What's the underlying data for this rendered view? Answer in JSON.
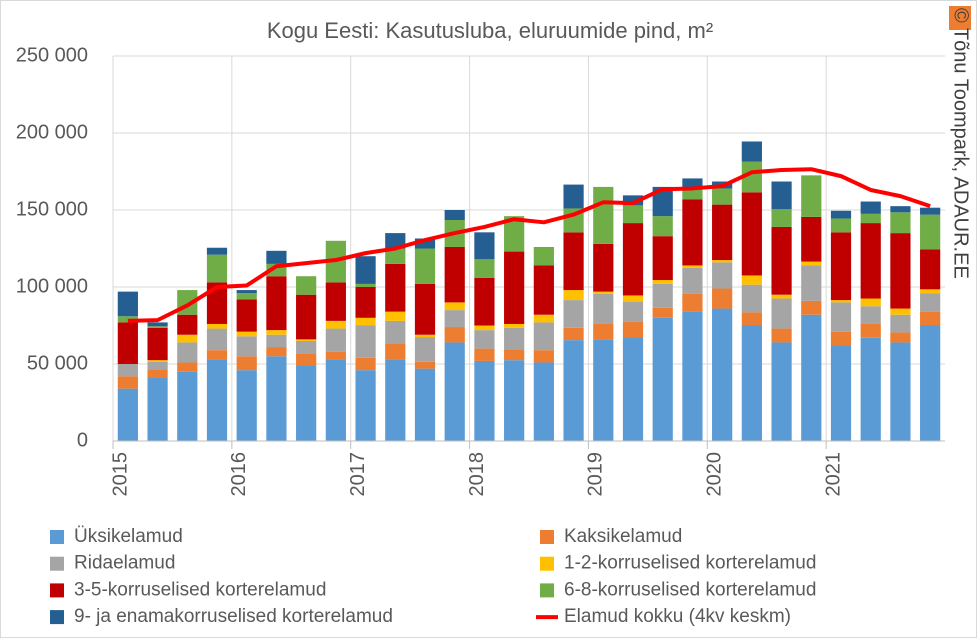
{
  "chart_data": {
    "type": "stacked_bar",
    "title": "Kogu Eesti: Kasutusluba, eluruumide pind, m²",
    "source": "© Tõnu Toompark, ADAUR.EE",
    "categories": [
      "2015",
      null,
      null,
      null,
      "2016",
      null,
      null,
      null,
      "2017",
      null,
      null,
      null,
      "2018",
      null,
      null,
      null,
      "2019",
      null,
      null,
      null,
      "2020",
      null,
      null,
      null,
      "2021",
      null,
      null,
      null
    ],
    "series": [
      {
        "name": "Üksikelamud",
        "color": "#5b9bd5",
        "values": [
          34000,
          41500,
          45000,
          53000,
          46000,
          55000,
          49000,
          53000,
          46000,
          53000,
          47000,
          64000,
          52000,
          52500,
          51000,
          65500,
          66000,
          67500,
          80000,
          84000,
          86000,
          75000,
          64000,
          82000,
          62000,
          67000,
          64000,
          75000
        ]
      },
      {
        "name": "Kaksikelamud",
        "color": "#ed7d31",
        "values": [
          8000,
          5000,
          6000,
          6000,
          9000,
          6000,
          8000,
          5000,
          8000,
          10000,
          4500,
          10000,
          8000,
          7000,
          8000,
          8000,
          10000,
          10000,
          6500,
          11500,
          13000,
          8500,
          9000,
          9000,
          9000,
          9000,
          6500,
          9000
        ]
      },
      {
        "name": "Ridaelamud",
        "color": "#a5a5a5",
        "values": [
          8000,
          5000,
          13000,
          14000,
          13000,
          8000,
          8000,
          15000,
          21000,
          15000,
          16000,
          11000,
          12000,
          14000,
          18000,
          18000,
          19500,
          13000,
          15500,
          17000,
          17000,
          18000,
          19500,
          23000,
          19000,
          11500,
          11500,
          12000
        ]
      },
      {
        "name": "1-2-korruselised korterelamud",
        "color": "#ffc000",
        "values": [
          0,
          1000,
          5000,
          3000,
          3000,
          3000,
          1000,
          5000,
          5000,
          6000,
          1500,
          5000,
          3000,
          2500,
          5000,
          6500,
          1500,
          4000,
          2500,
          1500,
          1500,
          6000,
          2500,
          2500,
          1500,
          5000,
          4000,
          2500
        ]
      },
      {
        "name": "3-5-korruselised korterelamud",
        "color": "#c00000",
        "values": [
          27000,
          21000,
          13000,
          27000,
          21000,
          35000,
          29000,
          25000,
          20000,
          31000,
          33000,
          36000,
          31000,
          47000,
          32000,
          37500,
          31000,
          47000,
          28500,
          43000,
          36000,
          54000,
          44000,
          29000,
          44000,
          49000,
          49000,
          26000
        ]
      },
      {
        "name": "6-8-korruselised korterelamud",
        "color": "#70ad47",
        "values": [
          4000,
          1000,
          16000,
          18000,
          4000,
          8000,
          12000,
          27000,
          2000,
          10000,
          23000,
          17500,
          12000,
          23000,
          12000,
          15500,
          37000,
          11500,
          13000,
          6500,
          10500,
          20000,
          11500,
          27000,
          9000,
          6000,
          13500,
          22500
        ]
      },
      {
        "name": "9- ja enamakorruselised korterelamud",
        "color": "#255e91",
        "values": [
          16000,
          2500,
          0,
          4500,
          2000,
          8500,
          0,
          0,
          18000,
          10000,
          6500,
          6500,
          17500,
          0,
          0,
          15500,
          0,
          6500,
          19000,
          7000,
          4500,
          13000,
          18000,
          0,
          5000,
          8000,
          4000,
          4500
        ]
      },
      {
        "name": "Elamud kokku (4kv keskm)",
        "type": "line",
        "color": "#ff0000",
        "values": [
          78000,
          78500,
          88000,
          100000,
          101000,
          113500,
          115500,
          117500,
          122000,
          125000,
          130500,
          135000,
          139000,
          144000,
          142000,
          147000,
          155000,
          154500,
          163500,
          164000,
          165500,
          174500,
          176000,
          176500,
          172000,
          163000,
          159000,
          152500
        ]
      }
    ],
    "ylim": [
      0,
      250000
    ],
    "yticks": [
      0,
      {
        "value": 50000,
        "label": "50 000"
      },
      {
        "value": 100000,
        "label": "100 000"
      },
      {
        "value": 150000,
        "label": "150 000"
      },
      {
        "value": 200000,
        "label": "200 000"
      },
      {
        "value": 250000,
        "label": "250 000"
      }
    ],
    "grid": true
  }
}
